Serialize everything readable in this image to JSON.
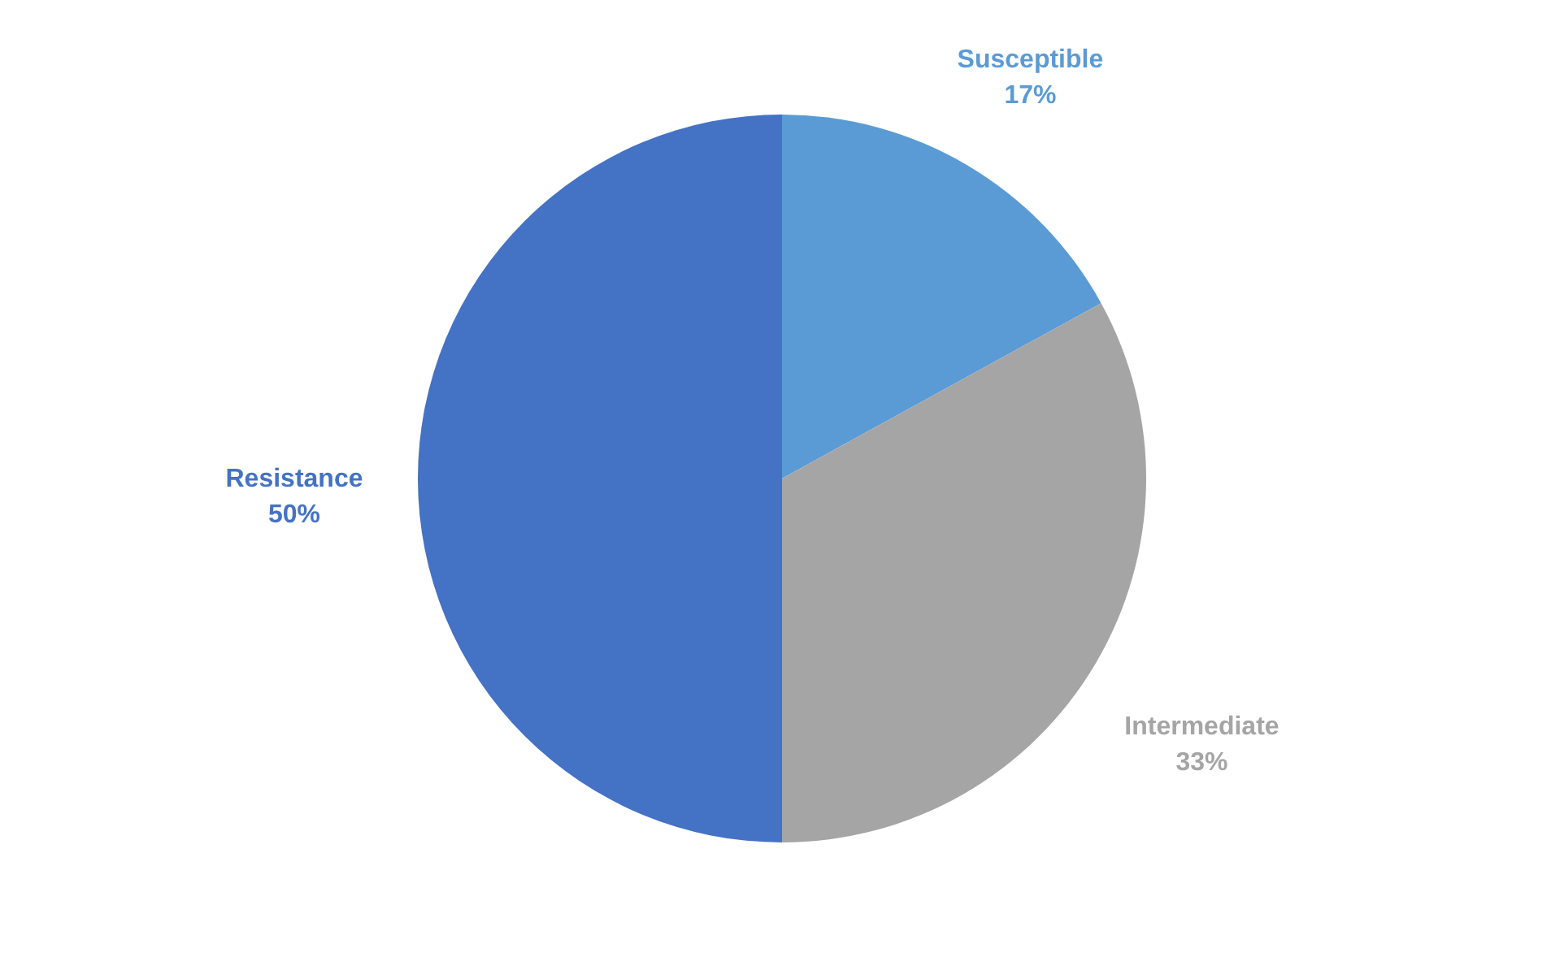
{
  "chart_data": {
    "type": "pie",
    "categories": [
      "Susceptible",
      "Intermediate",
      "Resistance"
    ],
    "values": [
      17,
      33,
      50
    ],
    "value_labels": [
      "17%",
      "33%",
      "50%"
    ],
    "colors": [
      "#5b9bd5",
      "#a5a5a5",
      "#4472c4"
    ],
    "legend": false
  }
}
